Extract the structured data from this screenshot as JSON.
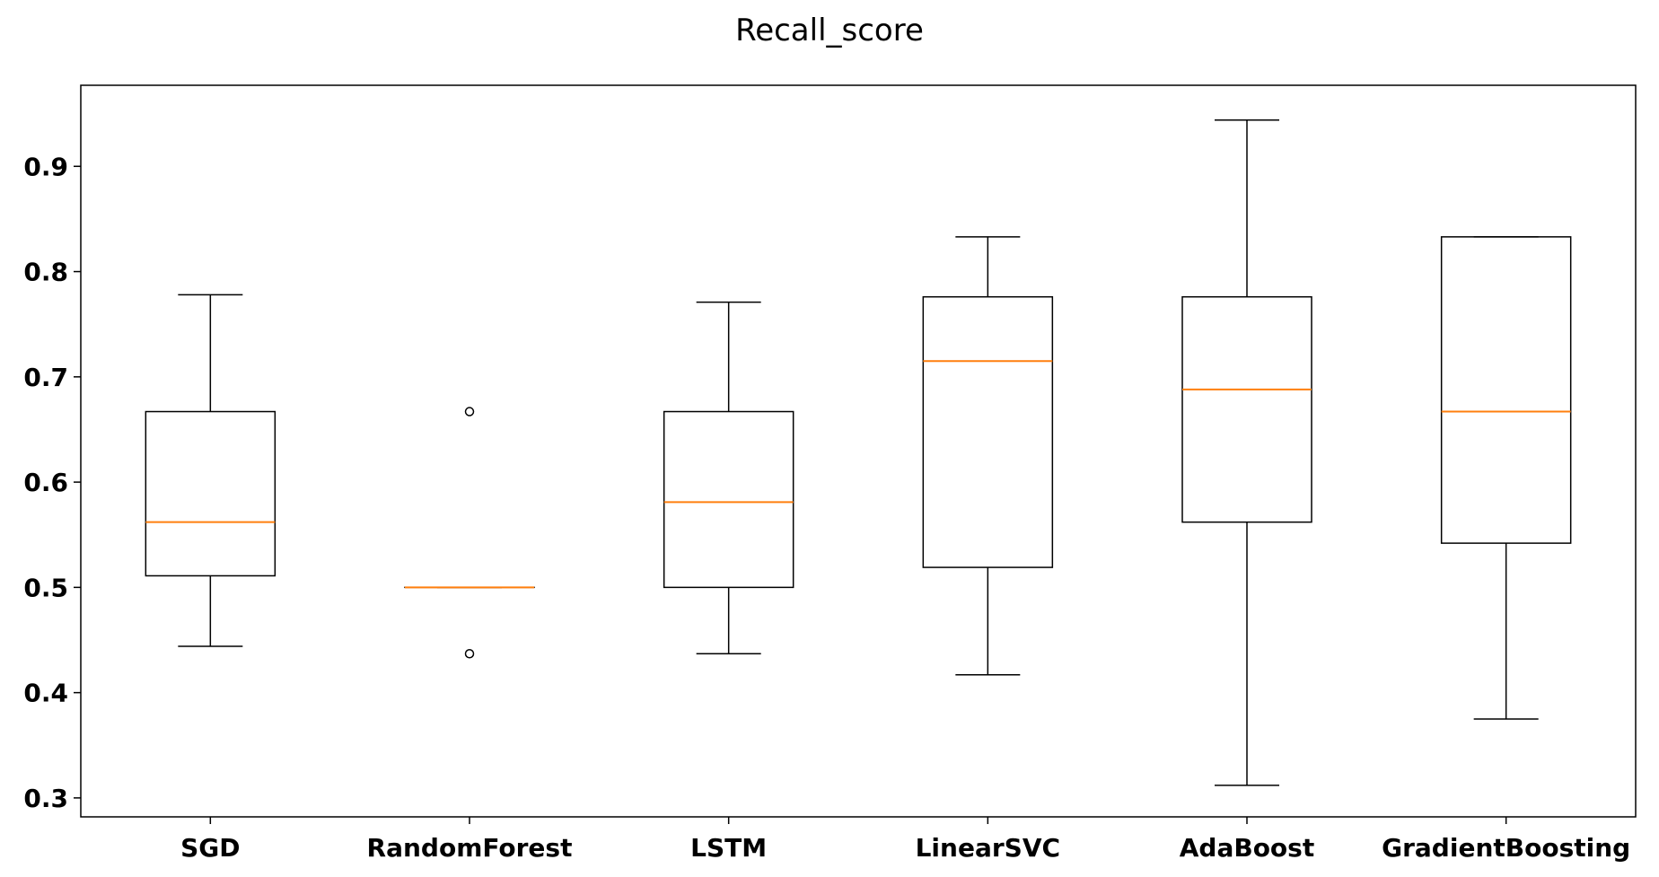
{
  "chart_data": {
    "type": "box",
    "title": "Recall_score",
    "xlabel": "",
    "ylabel": "",
    "ylim": [
      0.282,
      0.977
    ],
    "yticks": [
      0.3,
      0.4,
      0.5,
      0.6,
      0.7,
      0.8,
      0.9
    ],
    "grid": false,
    "legend": "none",
    "colors": {
      "box": "#000000",
      "median": "#ff7f0e",
      "axes": "#000000"
    },
    "categories": [
      "SGD",
      "RandomForest",
      "LSTM",
      "LinearSVC",
      "AdaBoost",
      "GradientBoosting"
    ],
    "boxes": [
      {
        "label": "SGD",
        "whisker_low": 0.444,
        "q1": 0.511,
        "median": 0.562,
        "q3": 0.667,
        "whisker_high": 0.778,
        "outliers": []
      },
      {
        "label": "RandomForest",
        "whisker_low": 0.5,
        "q1": 0.5,
        "median": 0.5,
        "q3": 0.5,
        "whisker_high": 0.5,
        "outliers": [
          0.667,
          0.437
        ]
      },
      {
        "label": "LSTM",
        "whisker_low": 0.437,
        "q1": 0.5,
        "median": 0.581,
        "q3": 0.667,
        "whisker_high": 0.771,
        "outliers": []
      },
      {
        "label": "LinearSVC",
        "whisker_low": 0.417,
        "q1": 0.519,
        "median": 0.715,
        "q3": 0.776,
        "whisker_high": 0.833,
        "outliers": []
      },
      {
        "label": "AdaBoost",
        "whisker_low": 0.312,
        "q1": 0.562,
        "median": 0.688,
        "q3": 0.776,
        "whisker_high": 0.944,
        "outliers": []
      },
      {
        "label": "GradientBoosting",
        "whisker_low": 0.375,
        "q1": 0.542,
        "median": 0.667,
        "q3": 0.833,
        "whisker_high": 0.833,
        "outliers": []
      }
    ]
  }
}
